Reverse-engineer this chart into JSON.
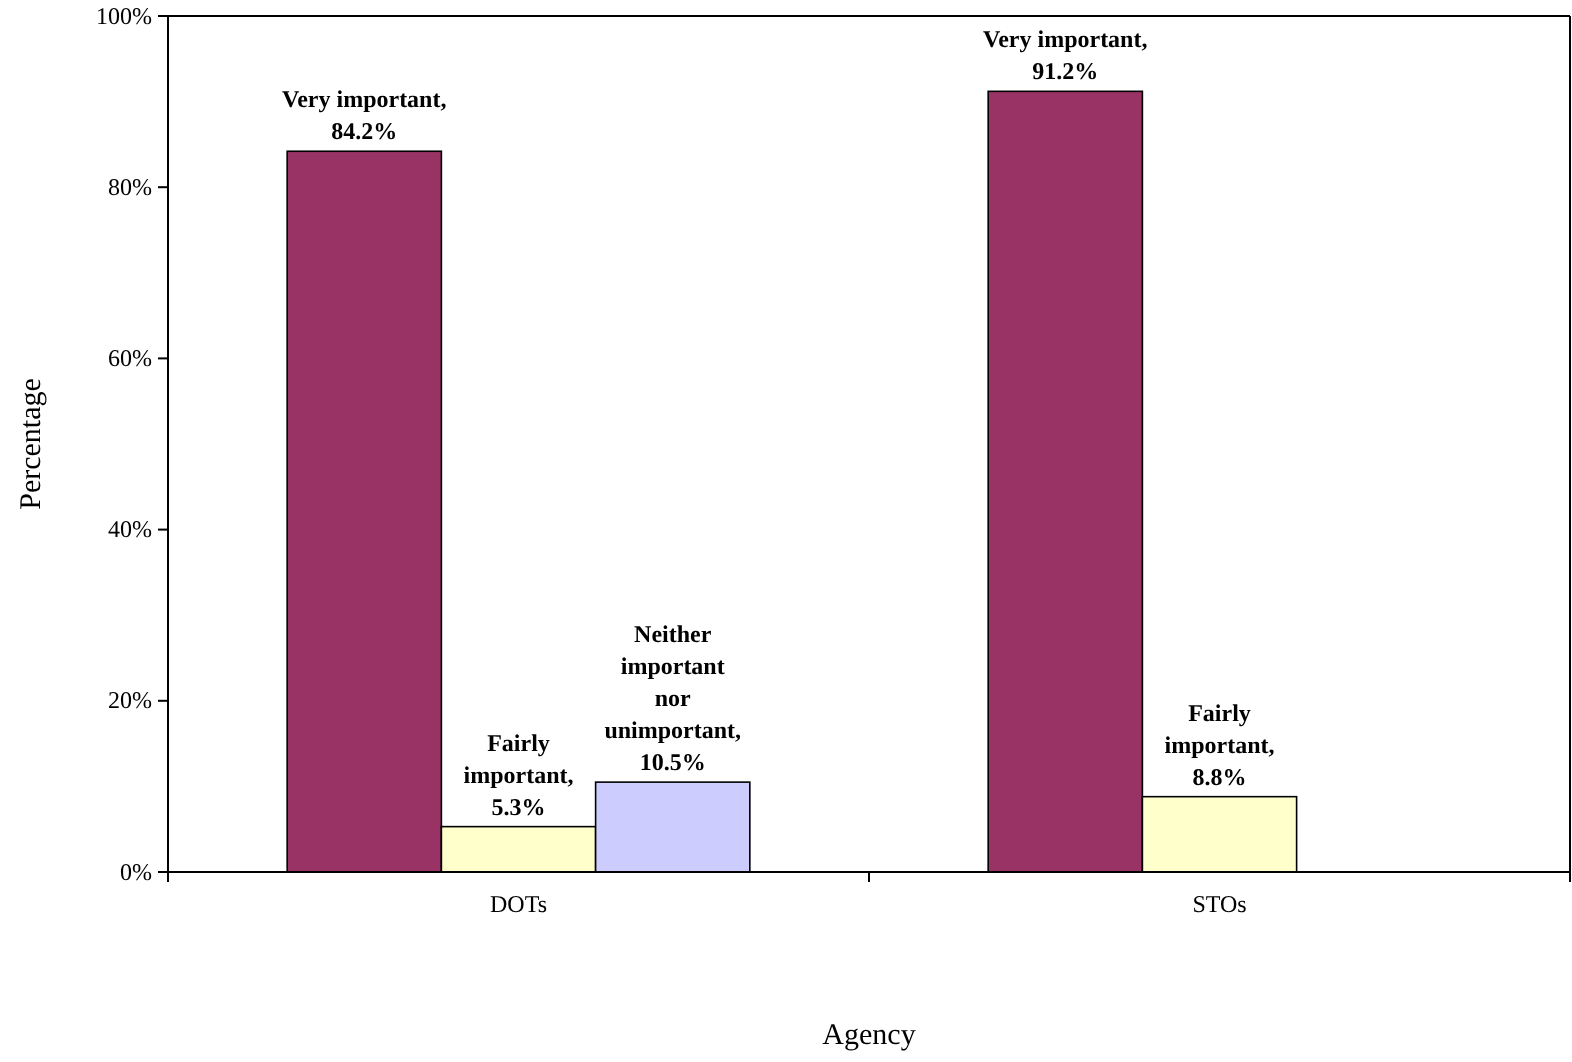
{
  "chart_data": {
    "type": "bar",
    "xlabel": "Agency",
    "ylabel": "Percentage",
    "categories": [
      "DOTs",
      "STOs"
    ],
    "series": [
      {
        "color": "#993366",
        "values": [
          84.2,
          91.2
        ],
        "value_labels": [
          "Very important, 84.2%",
          "Very important, 91.2%"
        ]
      },
      {
        "color": "#ffffcc",
        "values": [
          5.3,
          8.8
        ],
        "value_labels": [
          "Fairly important, 5.3%",
          "Fairly important, 8.8%"
        ]
      },
      {
        "color": "#ccccff",
        "values": [
          10.5,
          null
        ],
        "value_labels": [
          "Neither important nor unimportant, 10.5%",
          null
        ]
      }
    ],
    "ylim": [
      0,
      100
    ],
    "yticks": [
      {
        "value": 0,
        "label": "0%"
      },
      {
        "value": 20,
        "label": "20%"
      },
      {
        "value": 40,
        "label": "40%"
      },
      {
        "value": 60,
        "label": "60%"
      },
      {
        "value": 80,
        "label": "80%"
      },
      {
        "value": 100,
        "label": "100%"
      }
    ],
    "grid": false
  }
}
